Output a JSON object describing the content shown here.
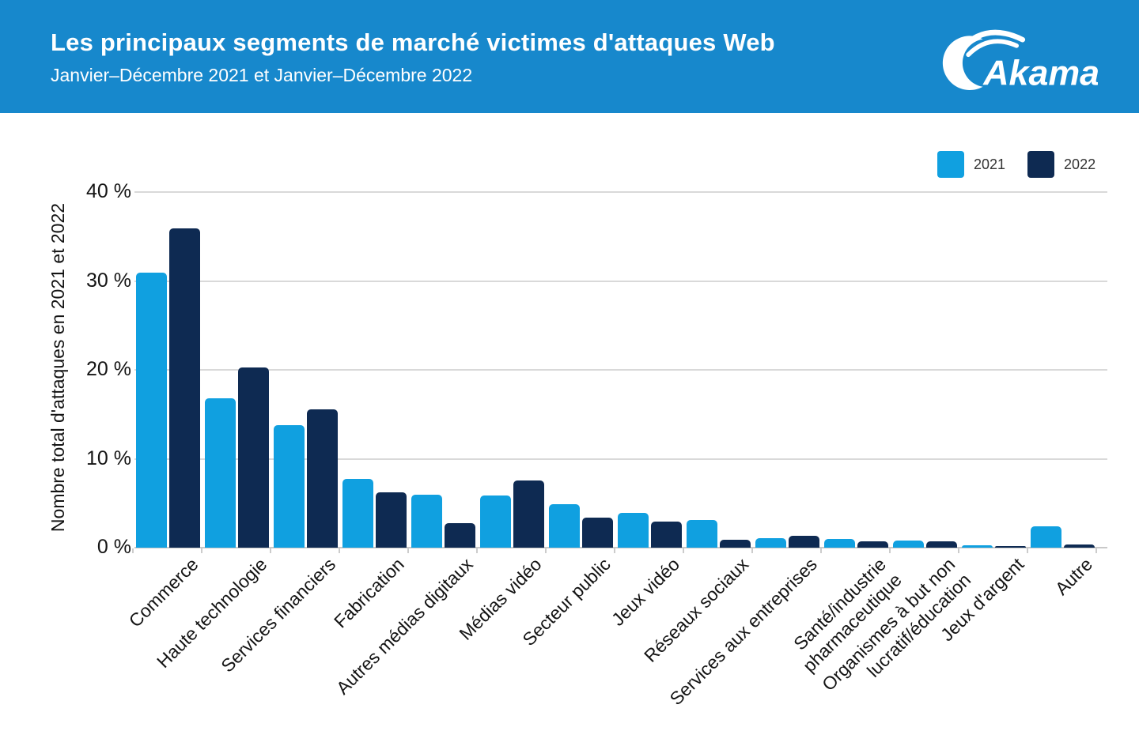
{
  "header": {
    "title": "Les principaux segments de marché victimes d'attaques Web",
    "subtitle": "Janvier–Décembre 2021 et Janvier–Décembre 2022",
    "logo_text": "Akamai"
  },
  "colors": {
    "banner_bg": "#1788cc",
    "series_2021": "#10a0e0",
    "series_2022": "#0e2a52",
    "gridline": "#d9d9d9",
    "axis_text": "#141414"
  },
  "chart_data": {
    "type": "bar",
    "title": "Les principaux segments de marché victimes d'attaques Web",
    "subtitle": "Janvier–Décembre 2021 et Janvier–Décembre 2022",
    "ylabel": "Nombre total d'attaques en 2021 et 2022",
    "xlabel": "",
    "ylim": [
      0,
      40
    ],
    "grid": true,
    "legend_position": "top-right",
    "yticks": [
      {
        "value": 40,
        "label": "40 %"
      },
      {
        "value": 30,
        "label": "30 %"
      },
      {
        "value": 20,
        "label": "20 %"
      },
      {
        "value": 10,
        "label": "10 %"
      },
      {
        "value": 0,
        "label": "0 %"
      }
    ],
    "categories": [
      "Commerce",
      "Haute technologie",
      "Services financiers",
      "Fabrication",
      "Autres médias digitaux",
      "Médias vidéo",
      "Secteur public",
      "Jeux vidéo",
      "Réseaux sociaux",
      "Services aux entreprises",
      "Santé/industrie\npharmaceutique",
      "Organismes à but non\nlucratif/éducation",
      "Jeux d'argent",
      "Autre"
    ],
    "series": [
      {
        "name": "2021",
        "color": "#10a0e0",
        "values": [
          30.9,
          16.8,
          13.8,
          7.7,
          6.0,
          5.9,
          4.9,
          3.9,
          3.1,
          1.1,
          1.0,
          0.8,
          0.3,
          2.4
        ]
      },
      {
        "name": "2022",
        "color": "#0e2a52",
        "values": [
          35.9,
          20.3,
          15.6,
          6.2,
          2.8,
          7.6,
          3.4,
          2.9,
          0.9,
          1.3,
          0.7,
          0.7,
          0.2,
          0.4
        ]
      }
    ]
  }
}
